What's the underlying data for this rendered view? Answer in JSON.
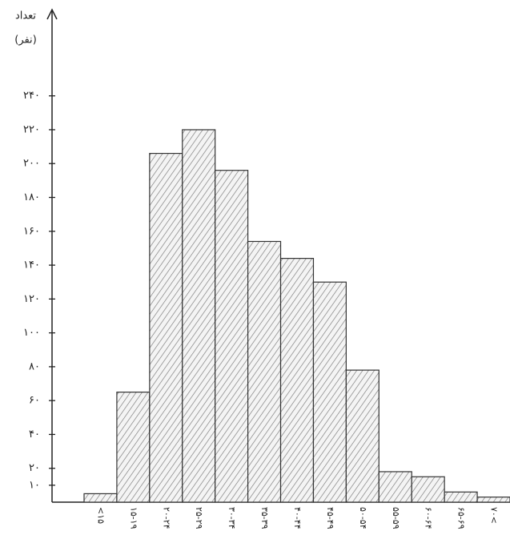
{
  "chart_data": {
    "type": "bar",
    "ylabel": "تعداد",
    "ylabel_unit": "(نفر)",
    "categories": [
      "<۱۵",
      "۱۵-۱۹",
      "۲۰-۲۴",
      "۲۵-۲۹",
      "۳۰-۳۴",
      "۳۵-۳۹",
      "۴۰-۴۴",
      "۴۵-۴۹",
      "۵۰-۵۴",
      "۵۵-۵۹",
      "۶۰-۶۴",
      "۶۵-۶۹",
      "۷۰<"
    ],
    "values": [
      5,
      65,
      206,
      220,
      196,
      154,
      144,
      130,
      78,
      18,
      15,
      6,
      3
    ],
    "color": "#555555",
    "ylim": [
      0,
      290
    ],
    "yticks": [
      {
        "value": 10,
        "label": "۱۰"
      },
      {
        "value": 20,
        "label": "۲۰"
      },
      {
        "value": 40,
        "label": "۴۰"
      },
      {
        "value": 60,
        "label": "۶۰"
      },
      {
        "value": 80,
        "label": "۸۰"
      },
      {
        "value": 100,
        "label": "۱۰۰"
      },
      {
        "value": 120,
        "label": "۱۲۰"
      },
      {
        "value": 140,
        "label": "۱۴۰"
      },
      {
        "value": 160,
        "label": "۱۶۰"
      },
      {
        "value": 180,
        "label": "۱۸۰"
      },
      {
        "value": 200,
        "label": "۲۰۰"
      },
      {
        "value": 220,
        "label": "۲۲۰"
      },
      {
        "value": 240,
        "label": "۲۴۰"
      }
    ],
    "grid": false
  }
}
